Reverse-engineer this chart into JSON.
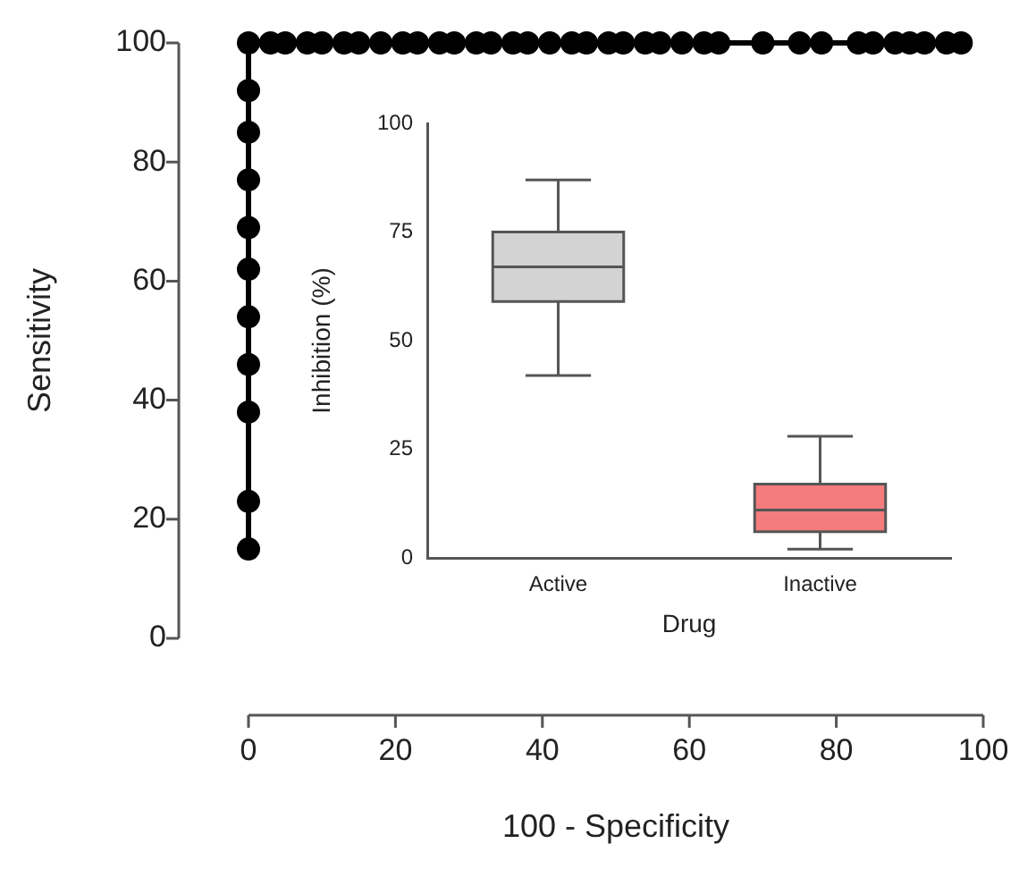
{
  "chart_data": [
    {
      "type": "line",
      "xlabel": "100 - Specificity",
      "ylabel": "Sensitivity",
      "x": [
        0,
        0,
        0,
        0,
        0,
        0,
        0,
        0,
        0,
        0,
        0,
        3,
        5,
        8,
        10,
        13,
        15,
        18,
        21,
        23,
        26,
        28,
        31,
        33,
        36,
        38,
        41,
        44,
        46,
        49,
        51,
        54,
        56,
        59,
        62,
        64,
        70,
        75,
        78,
        83,
        85,
        88,
        90,
        92,
        95,
        97
      ],
      "values": [
        15,
        23,
        38,
        46,
        54,
        62,
        69,
        77,
        85,
        92,
        100,
        100,
        100,
        100,
        100,
        100,
        100,
        100,
        100,
        100,
        100,
        100,
        100,
        100,
        100,
        100,
        100,
        100,
        100,
        100,
        100,
        100,
        100,
        100,
        100,
        100,
        100,
        100,
        100,
        100,
        100,
        100,
        100,
        100,
        100,
        100
      ],
      "color": "#000000",
      "marker": "circle",
      "line_style": "solid",
      "xlim": [
        0,
        100
      ],
      "ylim": [
        0,
        100
      ],
      "xticks": [
        0,
        20,
        40,
        60,
        80,
        100
      ],
      "yticks": [
        0,
        20,
        40,
        60,
        80,
        100
      ],
      "grid": false,
      "legend": false
    },
    {
      "type": "box",
      "xlabel": "Drug",
      "ylabel": "Inhibition (%)",
      "categories": [
        "Active",
        "Inactive"
      ],
      "boxes": [
        {
          "low": 42,
          "q1": 59,
          "median": 67,
          "q3": 75,
          "high": 87
        },
        {
          "low": 2,
          "q1": 6,
          "median": 11,
          "q3": 17,
          "high": 28
        }
      ],
      "colors": [
        "#d3d3d3",
        "#f47c7c"
      ],
      "ylim": [
        0,
        100
      ],
      "yticks": [
        0,
        25,
        50,
        75,
        100
      ],
      "grid": false,
      "legend": false
    }
  ]
}
